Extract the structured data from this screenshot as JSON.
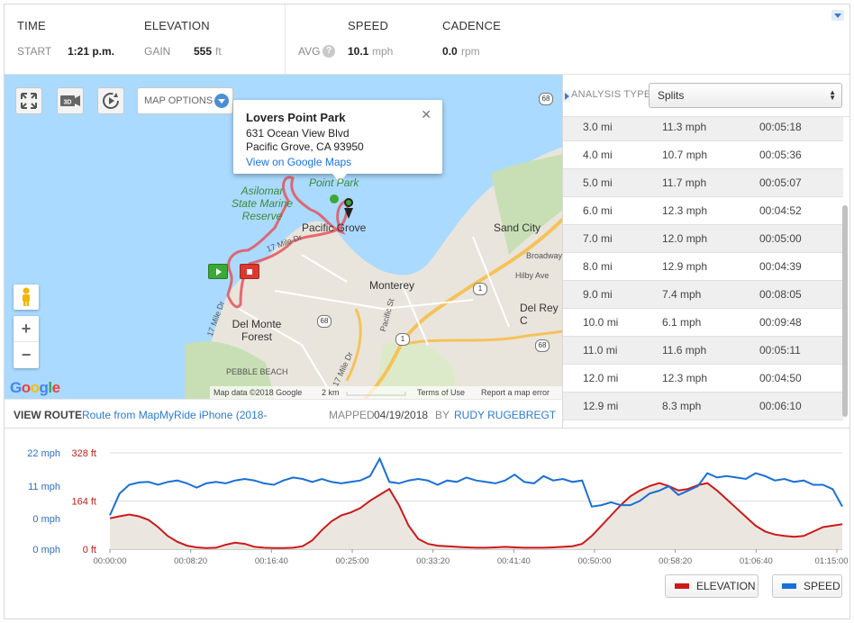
{
  "stats": {
    "time_header": "TIME",
    "start_label": "START",
    "start_value": "1:21 p.m.",
    "elevation_header": "ELEVATION",
    "gain_label": "GAIN",
    "gain_value": "555",
    "gain_unit": "ft",
    "speed_header": "SPEED",
    "avg_label": "AVG",
    "help_glyph": "?",
    "avg_value": "10.1",
    "avg_unit": "mph",
    "cadence_header": "CADENCE",
    "cadence_value": "0.0",
    "cadence_unit": "rpm"
  },
  "map": {
    "map_options_label": "MAP OPTIONS",
    "button_3d": "3D",
    "popup": {
      "title": "Lovers Point Park",
      "line1": "631 Ocean View Blvd",
      "line2": "Pacific Grove, CA 93950",
      "link": "View on Google Maps",
      "close": "✕"
    },
    "labels": {
      "asilomar": "Asilomar State Marine Reserve",
      "point_park": "Point Park",
      "pacific_grove": "Pacific Grove",
      "sand_city": "Sand City",
      "broadway": "Broadway",
      "hilby": "Hilby Ave",
      "monterey": "Monterey",
      "del_rey": "Del Rey C",
      "del_monte": "Del Monte Forest",
      "pebble_beach": "PEBBLE BEACH",
      "pacific_st": "Pacific St",
      "mile_dr_1": "17 Mile Dr",
      "mile_dr_2": "17 Mile Dr",
      "mile_dr_3": "17 Mile Dr"
    },
    "shields": [
      "68",
      "1",
      "68",
      "1",
      "68"
    ],
    "zoom_in": "+",
    "zoom_out": "−",
    "attribution": {
      "data": "Map data ©2018 Google",
      "scale": "2 km",
      "terms": "Terms of Use",
      "report": "Report a map error"
    },
    "google_logo": "Google"
  },
  "route": {
    "view_label": "VIEW ROUTE",
    "route_name": "Route from MapMyRide iPhone (2018-",
    "mapped_label": "MAPPED",
    "mapped_date": "04/19/2018",
    "by_label": "BY",
    "author": "RUDY RUGEBREGT"
  },
  "splits": {
    "analysis_label": "ANALYSIS TYPE:",
    "analysis_value": "Splits",
    "rows": [
      {
        "distance": "3.0 mi",
        "speed": "11.3 mph",
        "time": "00:05:18"
      },
      {
        "distance": "4.0 mi",
        "speed": "10.7 mph",
        "time": "00:05:36"
      },
      {
        "distance": "5.0 mi",
        "speed": "11.7 mph",
        "time": "00:05:07"
      },
      {
        "distance": "6.0 mi",
        "speed": "12.3 mph",
        "time": "00:04:52"
      },
      {
        "distance": "7.0 mi",
        "speed": "12.0 mph",
        "time": "00:05:00"
      },
      {
        "distance": "8.0 mi",
        "speed": "12.9 mph",
        "time": "00:04:39"
      },
      {
        "distance": "9.0 mi",
        "speed": "7.4 mph",
        "time": "00:08:05"
      },
      {
        "distance": "10.0 mi",
        "speed": "6.1 mph",
        "time": "00:09:48"
      },
      {
        "distance": "11.0 mi",
        "speed": "11.6 mph",
        "time": "00:05:11"
      },
      {
        "distance": "12.0 mi",
        "speed": "12.3 mph",
        "time": "00:04:50"
      },
      {
        "distance": "12.9 mi",
        "speed": "8.3 mph",
        "time": "00:06:10"
      }
    ]
  },
  "chart_data": {
    "type": "line",
    "x_ticks": [
      "00:00:00",
      "00:08:20",
      "00:16:40",
      "00:25:00",
      "00:33:20",
      "00:41:40",
      "00:50:00",
      "00:58:20",
      "01:06:40",
      "01:15:00"
    ],
    "speed_axis_ticks": [
      "22 mph",
      "11 mph",
      "0 mph",
      "0 mph"
    ],
    "elevation_axis_ticks": [
      "328 ft",
      "164 ft",
      "0 ft"
    ],
    "x_range_min": [
      0,
      76
    ],
    "speed_range_mph": [
      0,
      22
    ],
    "elevation_range_ft": [
      0,
      328
    ],
    "series": [
      {
        "name": "ELEVATION",
        "color": "#cc1a1a",
        "unit": "ft",
        "x_min": [
          0,
          1,
          2,
          3,
          4,
          5,
          6,
          7,
          8,
          9,
          10,
          11,
          12,
          13,
          14,
          15,
          16,
          17,
          18,
          19,
          20,
          21,
          22,
          23,
          24,
          25,
          26,
          27,
          28,
          29,
          30,
          31,
          32,
          33,
          34,
          35,
          36,
          37,
          38,
          39,
          40,
          41,
          42,
          43,
          44,
          45,
          46,
          47,
          48,
          49,
          50,
          51,
          52,
          53,
          54,
          55,
          56,
          57,
          58,
          59,
          60,
          61,
          62,
          63,
          64,
          65,
          66,
          67,
          68,
          69,
          70,
          71,
          72,
          73,
          74,
          75,
          76
        ],
        "values": [
          105,
          112,
          118,
          112,
          100,
          75,
          45,
          25,
          12,
          6,
          4,
          5,
          15,
          22,
          18,
          8,
          5,
          4,
          4,
          5,
          10,
          30,
          65,
          95,
          115,
          125,
          140,
          165,
          185,
          205,
          150,
          80,
          35,
          18,
          12,
          10,
          8,
          6,
          5,
          5,
          6,
          8,
          6,
          5,
          5,
          5,
          6,
          8,
          10,
          18,
          45,
          80,
          115,
          150,
          180,
          200,
          215,
          225,
          215,
          200,
          205,
          218,
          225,
          200,
          170,
          140,
          110,
          80,
          60,
          50,
          45,
          42,
          45,
          60,
          75,
          80,
          85
        ]
      },
      {
        "name": "SPEED",
        "color": "#1a6fd6",
        "unit": "mph",
        "x_min": [
          0,
          1,
          2,
          3,
          4,
          5,
          6,
          7,
          8,
          9,
          10,
          11,
          12,
          13,
          14,
          15,
          16,
          17,
          18,
          19,
          20,
          21,
          22,
          23,
          24,
          25,
          26,
          27,
          28,
          29,
          30,
          31,
          32,
          33,
          34,
          35,
          36,
          37,
          38,
          39,
          40,
          41,
          42,
          43,
          44,
          45,
          46,
          47,
          48,
          49,
          50,
          51,
          52,
          53,
          54,
          55,
          56,
          57,
          58,
          59,
          60,
          61,
          62,
          63,
          64,
          65,
          66,
          67,
          68,
          69,
          70,
          71,
          72,
          73,
          74,
          75,
          76
        ],
        "values": [
          0.5,
          8,
          11,
          11.8,
          12,
          11,
          12,
          12.5,
          11.5,
          10,
          11.5,
          12,
          11.5,
          12.5,
          13,
          12.5,
          11.5,
          11,
          12.5,
          13.5,
          13,
          12,
          13,
          12,
          11.5,
          12,
          12.5,
          14,
          20,
          12,
          11.5,
          12.5,
          13,
          12.5,
          11,
          12.5,
          12,
          13.5,
          12.5,
          12,
          11.5,
          12.5,
          14.5,
          12,
          11.5,
          14,
          12.5,
          13,
          12,
          12.5,
          3.5,
          4,
          5,
          4,
          4,
          5.5,
          8,
          9,
          10.5,
          7.5,
          9,
          10.5,
          15,
          13.5,
          14,
          13.5,
          13,
          15,
          14,
          12.5,
          13,
          12,
          12.5,
          11,
          11,
          9.5,
          3.5
        ]
      }
    ],
    "legend": [
      "ELEVATION",
      "SPEED"
    ],
    "grid": true
  }
}
